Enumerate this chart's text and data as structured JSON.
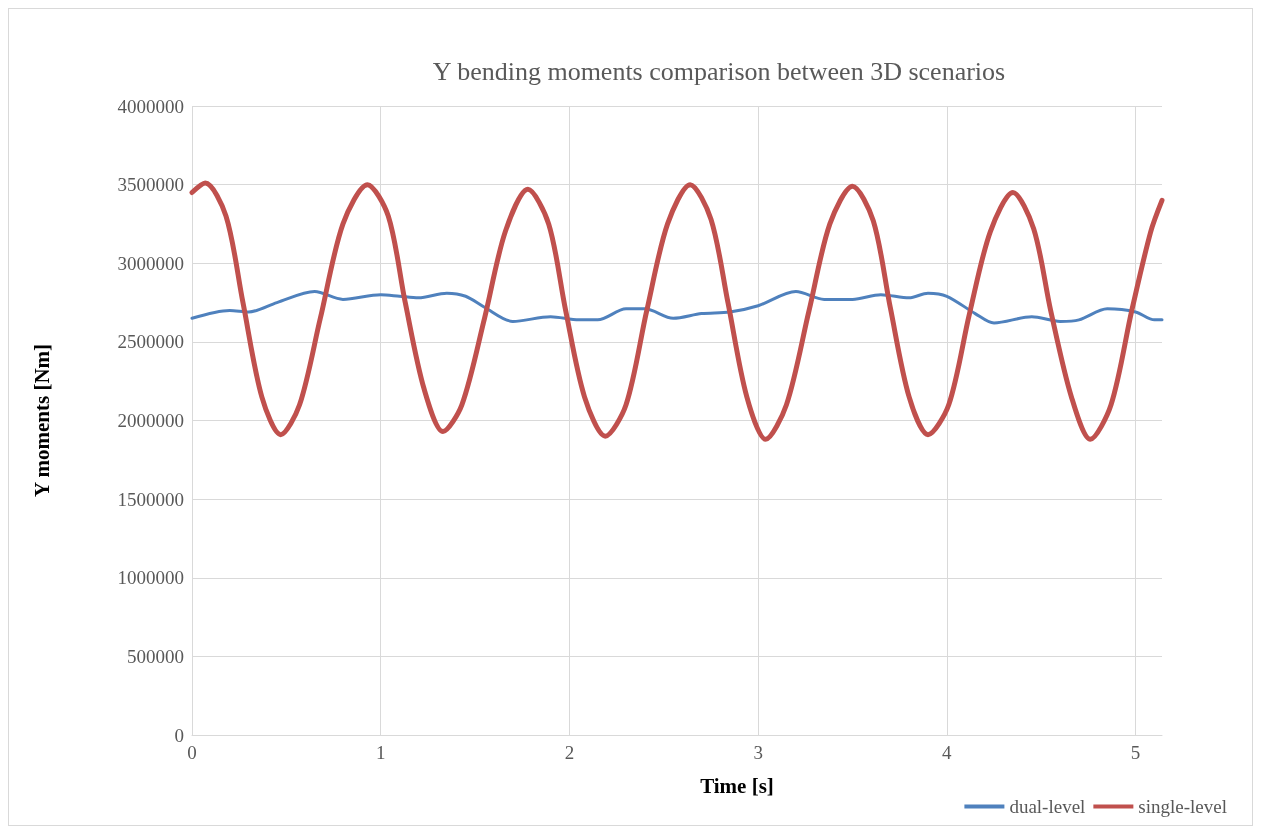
{
  "chart_data": {
    "type": "line",
    "title": "Y bending moments comparison between 3D scenarios",
    "xlabel": "Time [s]",
    "ylabel": "Y moments [Nm]",
    "xlim": [
      0,
      5.14
    ],
    "xticks": [
      0,
      1,
      2,
      3,
      4,
      5
    ],
    "ylim": [
      0,
      4000000
    ],
    "yticks": [
      0,
      500000,
      1000000,
      1500000,
      2000000,
      2500000,
      3000000,
      3500000,
      4000000
    ],
    "grid": true,
    "legend": "bottom right",
    "marker": "none",
    "line_style": "solid",
    "series": [
      {
        "name": "dual-level",
        "color": "#4f81bd",
        "x": [
          0,
          0.2,
          0.3,
          0.45,
          0.65,
          0.8,
          1.0,
          1.1,
          1.2,
          1.35,
          1.45,
          1.55,
          1.7,
          1.9,
          2.05,
          2.15,
          2.3,
          2.4,
          2.55,
          2.7,
          2.85,
          3.0,
          3.2,
          3.35,
          3.5,
          3.65,
          3.8,
          3.9,
          4.0,
          4.15,
          4.25,
          4.45,
          4.6,
          4.7,
          4.85,
          5.0,
          5.1,
          5.14
        ],
        "values": [
          2650000,
          2700000,
          2690000,
          2750000,
          2820000,
          2770000,
          2800000,
          2790000,
          2780000,
          2810000,
          2790000,
          2720000,
          2630000,
          2660000,
          2640000,
          2640000,
          2710000,
          2710000,
          2650000,
          2680000,
          2690000,
          2730000,
          2820000,
          2770000,
          2770000,
          2800000,
          2780000,
          2810000,
          2790000,
          2680000,
          2620000,
          2660000,
          2630000,
          2640000,
          2710000,
          2690000,
          2640000,
          2640000
        ]
      },
      {
        "name": "single-level",
        "color": "#c0504d",
        "x": [
          0,
          0.07,
          0.18,
          0.27,
          0.37,
          0.47,
          0.57,
          0.68,
          0.8,
          0.93,
          1.04,
          1.13,
          1.23,
          1.33,
          1.43,
          1.55,
          1.66,
          1.78,
          1.89,
          1.98,
          2.08,
          2.19,
          2.3,
          2.41,
          2.52,
          2.64,
          2.75,
          2.84,
          2.94,
          3.04,
          3.15,
          3.27,
          3.38,
          3.5,
          3.61,
          3.7,
          3.8,
          3.9,
          4.01,
          4.12,
          4.23,
          4.35,
          4.46,
          4.55,
          4.66,
          4.76,
          4.87,
          4.98,
          5.08,
          5.14
        ],
        "values": [
          3450000,
          3510000,
          3300000,
          2750000,
          2150000,
          1910000,
          2100000,
          2650000,
          3250000,
          3500000,
          3300000,
          2750000,
          2200000,
          1930000,
          2100000,
          2650000,
          3200000,
          3470000,
          3250000,
          2700000,
          2150000,
          1900000,
          2100000,
          2700000,
          3250000,
          3500000,
          3280000,
          2750000,
          2150000,
          1880000,
          2100000,
          2700000,
          3250000,
          3490000,
          3270000,
          2720000,
          2150000,
          1910000,
          2100000,
          2680000,
          3200000,
          3450000,
          3220000,
          2700000,
          2150000,
          1880000,
          2100000,
          2700000,
          3200000,
          3400000
        ]
      }
    ]
  }
}
